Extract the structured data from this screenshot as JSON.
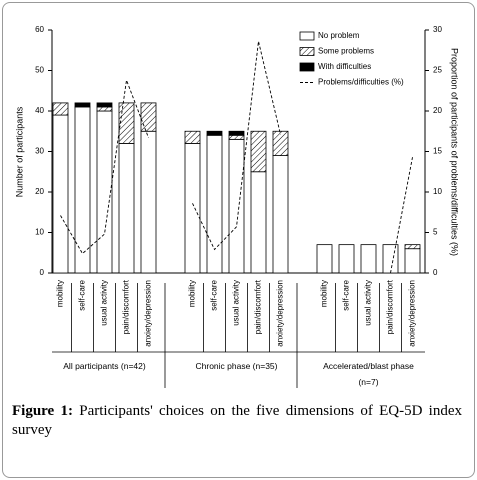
{
  "chart_data": {
    "type": "bar",
    "ylabel": "Number of participants",
    "y2label": "Proportion of participants of problems/difficulties (%)",
    "ylim": [
      0,
      60
    ],
    "yticks": [
      0,
      10,
      20,
      30,
      40,
      50,
      60
    ],
    "y2lim": [
      0,
      30
    ],
    "y2ticks": [
      0,
      5,
      10,
      15,
      20,
      25,
      30
    ],
    "legend": [
      {
        "name": "No problem",
        "color": "#ffffff"
      },
      {
        "name": "Some problems",
        "color": "#000000",
        "pattern": "hatch"
      },
      {
        "name": "With difficulties",
        "color": "#000000"
      },
      {
        "name": "Problems/difficulties (%)",
        "color": "#000000",
        "line": "dashed",
        "axis": "y2"
      }
    ],
    "groups": [
      {
        "label": "All participants (n=42)",
        "categories": [
          "mobility",
          "self-care",
          "usual activity",
          "pain/discomfort",
          "anxiety/depression"
        ],
        "series": [
          {
            "values": [
              39,
              41,
              40,
              32,
              35
            ]
          },
          {
            "values": [
              3,
              0,
              1,
              10,
              7
            ]
          },
          {
            "values": [
              0,
              1,
              1,
              0,
              0
            ]
          },
          {
            "values": [
              7.1,
              2.4,
              4.8,
              23.8,
              16.7
            ]
          }
        ]
      },
      {
        "label": "Chronic phase (n=35)",
        "categories": [
          "mobility",
          "self-care",
          "usual activity",
          "pain/discomfort",
          "anxiety/depression"
        ],
        "series": [
          {
            "values": [
              32,
              34,
              33,
              25,
              29
            ]
          },
          {
            "values": [
              3,
              0,
              1,
              10,
              6
            ]
          },
          {
            "values": [
              0,
              1,
              1,
              0,
              0
            ]
          },
          {
            "values": [
              8.6,
              2.9,
              5.7,
              28.6,
              17.1
            ]
          }
        ]
      },
      {
        "label": "Accelerated/blast phase (n=7)",
        "categories": [
          "mobility",
          "self-care",
          "usual activity",
          "pain/discomfort",
          "anxiety/depression"
        ],
        "series": [
          {
            "values": [
              7,
              7,
              7,
              7,
              6
            ]
          },
          {
            "values": [
              0,
              0,
              0,
              0,
              1
            ]
          },
          {
            "values": [
              0,
              0,
              0,
              0,
              0
            ]
          },
          {
            "values": [
              null,
              null,
              null,
              0,
              14.3
            ]
          }
        ]
      }
    ]
  },
  "caption": {
    "label": "Figure 1:",
    "text": "Participants' choices on the five dimensions of EQ-5D index survey"
  }
}
